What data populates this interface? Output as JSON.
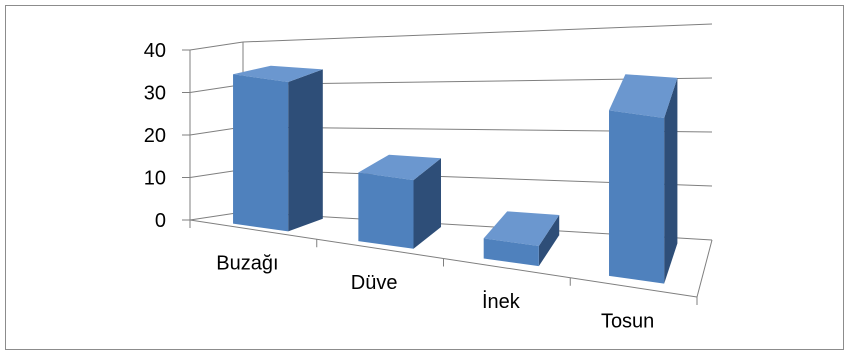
{
  "chart_data": {
    "type": "bar",
    "style": "3d-column",
    "categories": [
      "Buzağı",
      "Düve",
      "İnek",
      "Tosun"
    ],
    "values": [
      37,
      17,
      5,
      41
    ],
    "ylim": [
      0,
      40
    ],
    "yticks": [
      "0",
      "10",
      "20",
      "30",
      "40"
    ],
    "title": "",
    "xlabel": "",
    "ylabel": "",
    "grid": true,
    "legend": "none",
    "colors": {
      "bar_front": "#4F81BD",
      "bar_side": "#2E4E78",
      "bar_top": "#6B97CF",
      "gridline": "#7F7F7F"
    }
  }
}
